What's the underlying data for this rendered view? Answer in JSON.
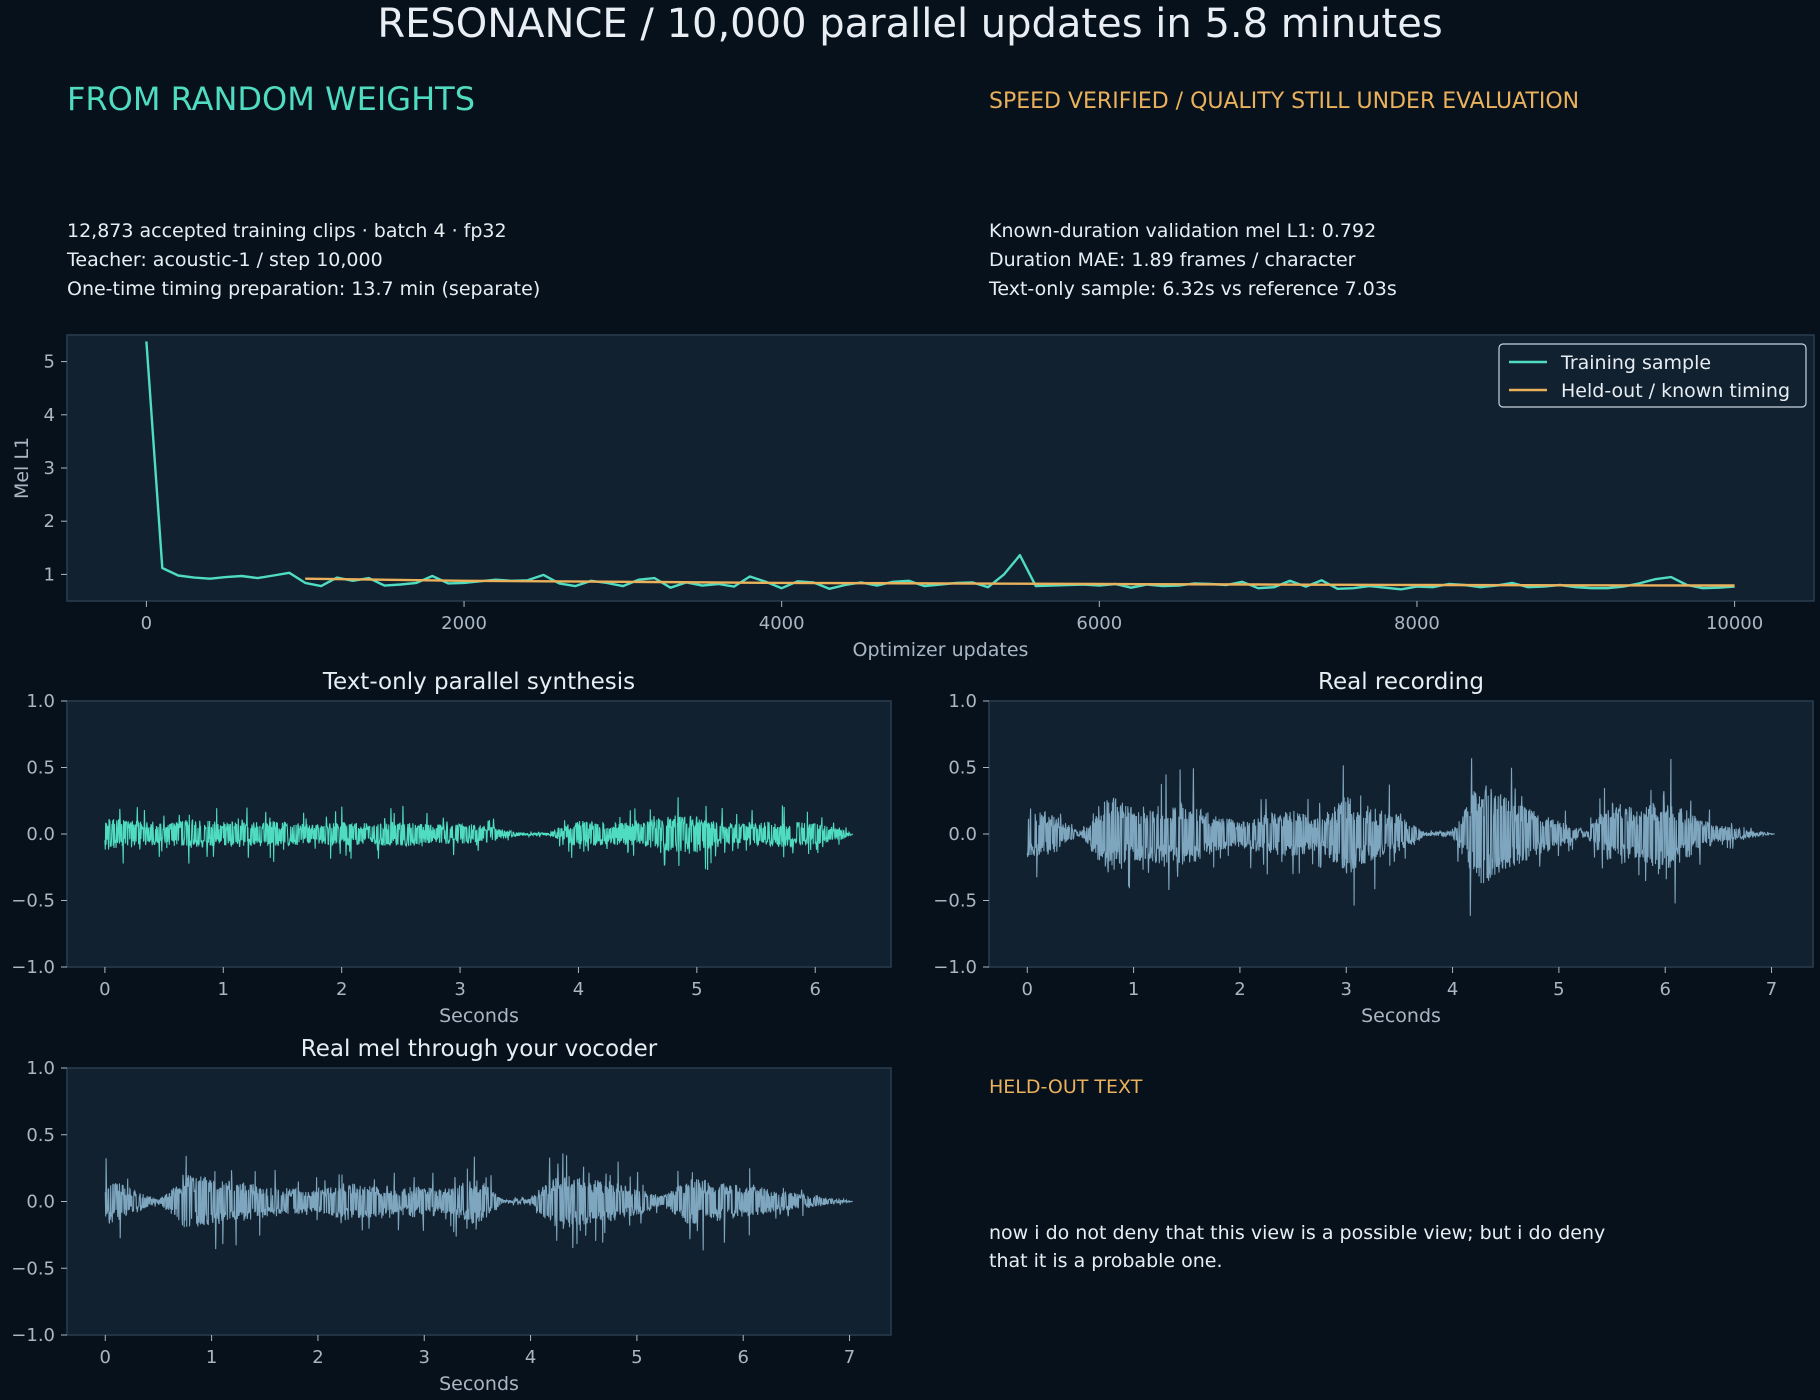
{
  "header": {
    "title": "RESONANCE / 10,000 parallel updates in 5.8 minutes",
    "left_heading": "FROM RANDOM WEIGHTS",
    "right_heading": "SPEED VERIFIED / QUALITY STILL UNDER EVALUATION",
    "left_stats": [
      "12,873 accepted training clips · batch 4 · fp32",
      "Teacher: acoustic-1 / step 10,000",
      "One-time timing preparation: 13.7 min (separate)"
    ],
    "right_stats": [
      "Known-duration validation mel L1: 0.792",
      "Duration MAE: 1.89 frames / character",
      "Text-only sample: 6.32s vs reference 7.03s"
    ]
  },
  "heldout": {
    "label": "HELD-OUT TEXT",
    "text": "now i do not deny that this view is a possible view; but i do deny that it is a probable one."
  },
  "colors": {
    "background": "#07111b",
    "panel": "#11212f",
    "teal": "#4fdcc0",
    "orange": "#eab15c",
    "wave_blue": "#7ea6bf",
    "tick": "#a9b6c3"
  },
  "chart_data": [
    {
      "type": "line",
      "title": "",
      "xlabel": "Optimizer updates",
      "ylabel": "Mel L1",
      "xlim": [
        -500,
        10500
      ],
      "ylim": [
        0.5,
        5.5
      ],
      "xticks": [
        0,
        2000,
        4000,
        6000,
        8000,
        10000
      ],
      "yticks": [
        1,
        2,
        3,
        4,
        5
      ],
      "legend_position": "top-right",
      "grid": false,
      "series": [
        {
          "name": "Training sample",
          "color": "#4fdcc0",
          "x": [
            0,
            100,
            200,
            300,
            400,
            500,
            600,
            700,
            800,
            900,
            1000,
            1100,
            1200,
            1300,
            1400,
            1500,
            1600,
            1700,
            1800,
            1900,
            2000,
            2100,
            2200,
            2300,
            2400,
            2500,
            2600,
            2700,
            2800,
            2900,
            3000,
            3100,
            3200,
            3300,
            3400,
            3500,
            3600,
            3700,
            3800,
            3900,
            4000,
            4100,
            4200,
            4300,
            4400,
            4500,
            4600,
            4700,
            4800,
            4900,
            5000,
            5100,
            5200,
            5300,
            5400,
            5500,
            5600,
            5700,
            5800,
            5900,
            6000,
            6100,
            6200,
            6300,
            6400,
            6500,
            6600,
            6700,
            6800,
            6900,
            7000,
            7100,
            7200,
            7300,
            7400,
            7500,
            7600,
            7700,
            7800,
            7900,
            8000,
            8100,
            8200,
            8300,
            8400,
            8500,
            8600,
            8700,
            8800,
            8900,
            9000,
            9100,
            9200,
            9300,
            9400,
            9500,
            9600,
            9700,
            9800,
            9900,
            10000
          ],
          "y": [
            5.38,
            1.12,
            0.98,
            0.94,
            0.92,
            0.95,
            0.97,
            0.93,
            0.98,
            1.03,
            0.84,
            0.78,
            0.94,
            0.88,
            0.93,
            0.79,
            0.81,
            0.84,
            0.97,
            0.83,
            0.84,
            0.87,
            0.9,
            0.88,
            0.89,
            0.99,
            0.83,
            0.78,
            0.88,
            0.84,
            0.78,
            0.9,
            0.93,
            0.75,
            0.85,
            0.79,
            0.82,
            0.77,
            0.96,
            0.86,
            0.74,
            0.87,
            0.85,
            0.73,
            0.8,
            0.85,
            0.79,
            0.86,
            0.88,
            0.78,
            0.81,
            0.84,
            0.85,
            0.76,
            1.0,
            1.36,
            0.78,
            0.79,
            0.8,
            0.81,
            0.79,
            0.82,
            0.75,
            0.81,
            0.78,
            0.79,
            0.83,
            0.82,
            0.8,
            0.86,
            0.74,
            0.76,
            0.88,
            0.77,
            0.89,
            0.73,
            0.74,
            0.78,
            0.75,
            0.72,
            0.77,
            0.76,
            0.82,
            0.8,
            0.76,
            0.79,
            0.84,
            0.76,
            0.77,
            0.8,
            0.76,
            0.74,
            0.74,
            0.77,
            0.83,
            0.91,
            0.95,
            0.8,
            0.74,
            0.75,
            0.77
          ]
        },
        {
          "name": "Held-out / known timing",
          "color": "#eab15c",
          "x": [
            1000,
            2000,
            3000,
            4000,
            5000,
            6000,
            7000,
            8000,
            9000,
            10000
          ],
          "y": [
            0.92,
            0.88,
            0.86,
            0.84,
            0.83,
            0.82,
            0.81,
            0.8,
            0.795,
            0.792
          ]
        }
      ]
    },
    {
      "type": "line",
      "title": "Text-only parallel synthesis",
      "xlabel": "Seconds",
      "ylabel": "",
      "duration_s": 6.32,
      "xlim": [
        -0.32,
        6.64
      ],
      "ylim": [
        -1.0,
        1.0
      ],
      "xticks": [
        0,
        1,
        2,
        3,
        4,
        5,
        6
      ],
      "yticks": [
        1.0,
        0.5,
        0.0,
        -0.5,
        -1.0
      ],
      "color": "#4fdcc0",
      "envelope": {
        "t": [
          0.0,
          0.25,
          0.5,
          0.75,
          1.0,
          1.25,
          1.5,
          1.75,
          2.0,
          2.25,
          2.5,
          2.75,
          3.0,
          3.25,
          3.5,
          3.75,
          4.0,
          4.25,
          4.5,
          4.75,
          5.0,
          5.25,
          5.5,
          5.75,
          6.0,
          6.25,
          6.32
        ],
        "amp": [
          0.12,
          0.1,
          0.08,
          0.11,
          0.09,
          0.09,
          0.1,
          0.07,
          0.09,
          0.08,
          0.1,
          0.07,
          0.08,
          0.06,
          0.01,
          0.01,
          0.1,
          0.08,
          0.09,
          0.13,
          0.14,
          0.08,
          0.09,
          0.1,
          0.08,
          0.03,
          0.0
        ]
      }
    },
    {
      "type": "line",
      "title": "Real recording",
      "xlabel": "Seconds",
      "ylabel": "",
      "duration_s": 7.03,
      "xlim": [
        -0.36,
        7.39
      ],
      "ylim": [
        -1.0,
        1.0
      ],
      "xticks": [
        0,
        1,
        2,
        3,
        4,
        5,
        6,
        7
      ],
      "yticks": [
        1.0,
        0.5,
        0.0,
        -0.5,
        -1.0
      ],
      "color": "#7ea6bf",
      "envelope": {
        "t": [
          0.0,
          0.25,
          0.5,
          0.75,
          1.0,
          1.25,
          1.5,
          1.75,
          2.0,
          2.25,
          2.5,
          2.75,
          3.0,
          3.25,
          3.5,
          3.75,
          4.0,
          4.25,
          4.5,
          4.75,
          5.0,
          5.25,
          5.5,
          5.75,
          6.0,
          6.25,
          6.5,
          6.75,
          7.03
        ],
        "amp": [
          0.2,
          0.15,
          0.01,
          0.3,
          0.2,
          0.22,
          0.25,
          0.14,
          0.1,
          0.15,
          0.18,
          0.12,
          0.3,
          0.2,
          0.14,
          0.01,
          0.02,
          0.4,
          0.28,
          0.18,
          0.1,
          0.02,
          0.25,
          0.18,
          0.3,
          0.15,
          0.07,
          0.03,
          0.0
        ]
      }
    },
    {
      "type": "line",
      "title": "Real mel through your vocoder",
      "xlabel": "Seconds",
      "ylabel": "",
      "duration_s": 7.03,
      "xlim": [
        -0.36,
        7.39
      ],
      "ylim": [
        -1.0,
        1.0
      ],
      "xticks": [
        0,
        1,
        2,
        3,
        4,
        5,
        6,
        7
      ],
      "yticks": [
        1.0,
        0.5,
        0.0,
        -0.5,
        -1.0
      ],
      "color": "#7ea6bf",
      "envelope": {
        "t": [
          0.0,
          0.25,
          0.5,
          0.75,
          1.0,
          1.25,
          1.5,
          1.75,
          2.0,
          2.25,
          2.5,
          2.75,
          3.0,
          3.25,
          3.5,
          3.75,
          4.0,
          4.25,
          4.5,
          4.75,
          5.0,
          5.25,
          5.5,
          5.75,
          6.0,
          6.25,
          6.5,
          6.75,
          7.03
        ],
        "amp": [
          0.18,
          0.1,
          0.01,
          0.2,
          0.18,
          0.15,
          0.12,
          0.1,
          0.08,
          0.14,
          0.12,
          0.1,
          0.12,
          0.1,
          0.18,
          0.01,
          0.02,
          0.22,
          0.18,
          0.15,
          0.1,
          0.04,
          0.18,
          0.15,
          0.12,
          0.1,
          0.06,
          0.03,
          0.0
        ]
      }
    }
  ]
}
